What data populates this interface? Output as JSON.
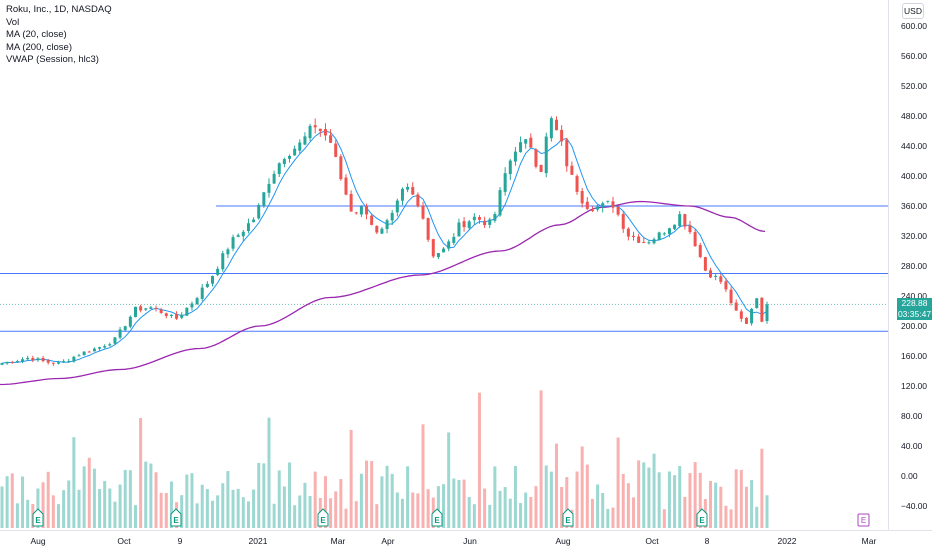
{
  "legend": {
    "symbol": "Roku, Inc., 1D, NASDAQ",
    "vol": "Vol",
    "ma20": "MA (20, close)",
    "ma200": "MA (200, close)",
    "vwap": "VWAP (Session, hlc3)"
  },
  "currency": "USD",
  "last_price": {
    "value": "228.88",
    "countdown": "03:35:47"
  },
  "colors": {
    "up": "#26a69a",
    "down": "#ef5350",
    "ma20": "#2196f3",
    "ma200": "#9c27b0",
    "hline": "#2962ff",
    "earnings_marker": "#089981",
    "dividend_marker": "#ab47bc"
  },
  "chart_data": {
    "type": "candlestick",
    "price_axis": {
      "labels": [
        "600.00",
        "560.00",
        "520.00",
        "480.00",
        "440.00",
        "400.00",
        "360.00",
        "320.00",
        "280.00",
        "240.00",
        "200.00",
        "160.00",
        "120.00",
        "80.00",
        "40.00",
        "0.00",
        "−40.00"
      ],
      "values": [
        600,
        560,
        520,
        480,
        440,
        400,
        360,
        320,
        280,
        240,
        200,
        160,
        120,
        80,
        40,
        0,
        -40
      ]
    },
    "time_axis": {
      "labels": [
        "Aug",
        "Oct",
        "9",
        "2021",
        "Mar",
        "Apr",
        "Jun",
        "Aug",
        "Oct",
        "8",
        "2022",
        "Mar"
      ]
    },
    "price_anchors": [
      [
        0,
        150
      ],
      [
        30,
        158
      ],
      [
        45,
        152
      ],
      [
        60,
        150
      ],
      [
        80,
        163
      ],
      [
        100,
        172
      ],
      [
        115,
        182
      ],
      [
        135,
        222
      ],
      [
        150,
        225
      ],
      [
        165,
        217
      ],
      [
        175,
        208
      ],
      [
        190,
        228
      ],
      [
        210,
        262
      ],
      [
        230,
        310
      ],
      [
        255,
        345
      ],
      [
        270,
        398
      ],
      [
        285,
        430
      ],
      [
        300,
        442
      ],
      [
        315,
        468
      ],
      [
        330,
        448
      ],
      [
        340,
        400
      ],
      [
        352,
        352
      ],
      [
        365,
        358
      ],
      [
        378,
        318
      ],
      [
        392,
        345
      ],
      [
        405,
        388
      ],
      [
        420,
        362
      ],
      [
        432,
        295
      ],
      [
        445,
        302
      ],
      [
        460,
        335
      ],
      [
        475,
        345
      ],
      [
        492,
        335
      ],
      [
        505,
        402
      ],
      [
        515,
        438
      ],
      [
        530,
        445
      ],
      [
        540,
        402
      ],
      [
        550,
        478
      ],
      [
        560,
        448
      ],
      [
        570,
        402
      ],
      [
        585,
        362
      ],
      [
        600,
        358
      ],
      [
        612,
        365
      ],
      [
        628,
        322
      ],
      [
        645,
        312
      ],
      [
        660,
        322
      ],
      [
        680,
        348
      ],
      [
        692,
        322
      ],
      [
        705,
        275
      ],
      [
        722,
        258
      ],
      [
        738,
        212
      ],
      [
        748,
        200
      ],
      [
        755,
        248
      ],
      [
        762,
        208
      ],
      [
        768,
        229
      ]
    ],
    "horizontal_levels": [
      360,
      270,
      193
    ],
    "current_price": 228.88
  }
}
